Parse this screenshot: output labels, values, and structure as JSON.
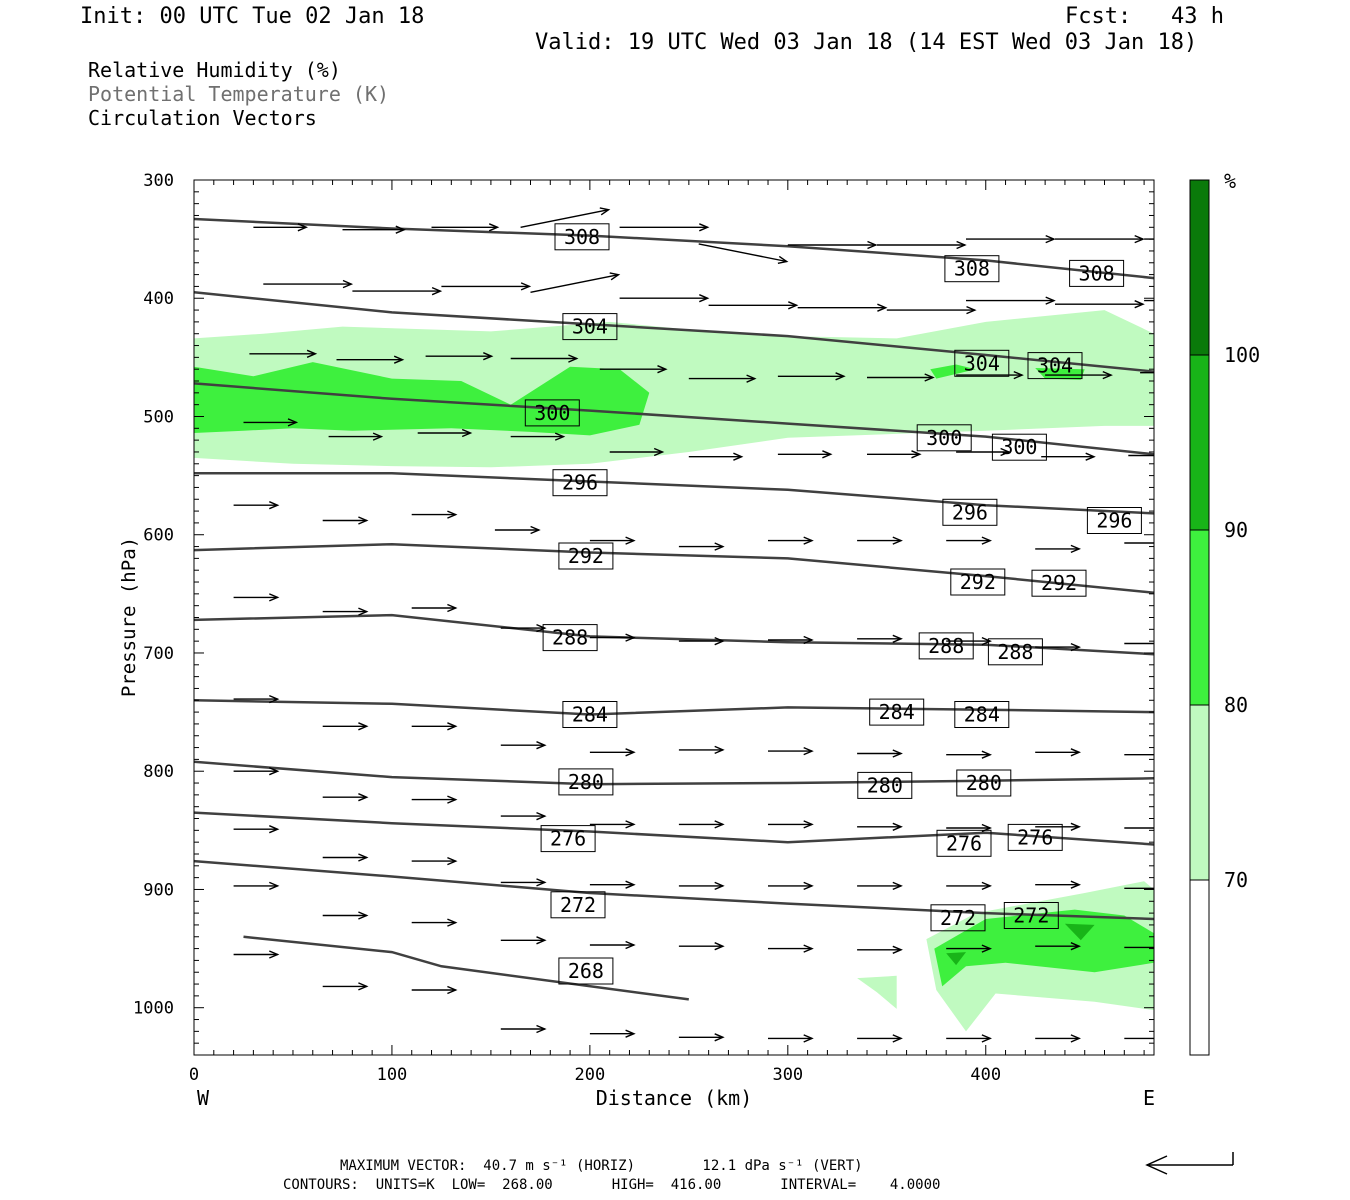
{
  "header": {
    "init": "Init: 00 UTC Tue 02 Jan 18",
    "fcst": "Fcst:   43 h",
    "valid": "Valid: 19 UTC Wed 03 Jan 18 (14 EST Wed 03 Jan 18)"
  },
  "legend_lines": {
    "rh": "Relative Humidity (%)",
    "theta": "Potential Temperature (K)",
    "vectors": "Circulation Vectors"
  },
  "footer": {
    "max_vector": "MAXIMUM VECTOR:  40.7 m s⁻¹ (HORIZ)        12.1 dPa s⁻¹ (VERT)",
    "contours": "CONTOURS:  UNITS=K  LOW=  268.00       HIGH=  416.00       INTERVAL=    4.0000"
  },
  "colors": {
    "rh_70_80": "#c0fac0",
    "rh_80_90": "#3ef03e",
    "rh_90_100": "#18b418",
    "rh_100": "#0a7a0a",
    "contour": "#404040"
  },
  "chart_data": {
    "type": "cross-section",
    "title": "",
    "xlabel": "Distance (km)",
    "ylabel": "Pressure (hPa)",
    "xlim": [
      0,
      485
    ],
    "ylim": [
      1040,
      300
    ],
    "x_ticks": [
      0,
      100,
      200,
      300,
      400
    ],
    "y_ticks": [
      300,
      400,
      500,
      600,
      700,
      800,
      900,
      1000
    ],
    "x_end_labels": {
      "left": "W",
      "right": "E"
    },
    "colorbar": {
      "unit": "%",
      "levels": [
        70,
        80,
        90,
        100
      ]
    },
    "theta_contours": [
      {
        "value": 308,
        "x": [
          0,
          100,
          200,
          300,
          400,
          485
        ],
        "p": [
          333,
          341,
          347,
          356,
          368,
          383
        ]
      },
      {
        "value": 304,
        "x": [
          0,
          100,
          200,
          300,
          400,
          485
        ],
        "p": [
          395,
          412,
          422,
          432,
          448,
          462
        ]
      },
      {
        "value": 300,
        "x": [
          0,
          100,
          200,
          300,
          400,
          485
        ],
        "p": [
          472,
          485,
          495,
          506,
          517,
          532
        ]
      },
      {
        "value": 296,
        "x": [
          0,
          100,
          200,
          300,
          400,
          485
        ],
        "p": [
          548,
          548,
          555,
          562,
          575,
          582
        ]
      },
      {
        "value": 292,
        "x": [
          0,
          100,
          200,
          300,
          400,
          485
        ],
        "p": [
          613,
          608,
          615,
          620,
          635,
          649
        ]
      },
      {
        "value": 288,
        "x": [
          0,
          100,
          200,
          300,
          400,
          485
        ],
        "p": [
          672,
          668,
          686,
          691,
          693,
          701
        ]
      },
      {
        "value": 284,
        "x": [
          0,
          100,
          200,
          300,
          400,
          485
        ],
        "p": [
          740,
          743,
          752,
          746,
          748,
          750
        ]
      },
      {
        "value": 280,
        "x": [
          0,
          100,
          200,
          300,
          400,
          485
        ],
        "p": [
          792,
          805,
          811,
          810,
          808,
          806
        ]
      },
      {
        "value": 276,
        "x": [
          0,
          100,
          200,
          300,
          400,
          485
        ],
        "p": [
          835,
          844,
          851,
          860,
          852,
          862
        ]
      },
      {
        "value": 272,
        "x": [
          0,
          100,
          200,
          300,
          400,
          485
        ],
        "p": [
          876,
          889,
          903,
          912,
          920,
          925
        ]
      },
      {
        "value": 268,
        "x": [
          25,
          100,
          125,
          250
        ],
        "p": [
          940,
          953,
          965,
          993
        ]
      }
    ],
    "contour_labels": [
      {
        "text": "308",
        "x": 196,
        "p": 348
      },
      {
        "text": "308",
        "x": 393,
        "p": 375
      },
      {
        "text": "308",
        "x": 456,
        "p": 379
      },
      {
        "text": "304",
        "x": 200,
        "p": 424
      },
      {
        "text": "304",
        "x": 398,
        "p": 455
      },
      {
        "text": "304",
        "x": 435,
        "p": 457
      },
      {
        "text": "300",
        "x": 181,
        "p": 497
      },
      {
        "text": "300",
        "x": 379,
        "p": 518
      },
      {
        "text": "300",
        "x": 417,
        "p": 526
      },
      {
        "text": "296",
        "x": 195,
        "p": 556
      },
      {
        "text": "296",
        "x": 392,
        "p": 581
      },
      {
        "text": "296",
        "x": 465,
        "p": 588
      },
      {
        "text": "292",
        "x": 198,
        "p": 618
      },
      {
        "text": "292",
        "x": 396,
        "p": 640
      },
      {
        "text": "292",
        "x": 437,
        "p": 641
      },
      {
        "text": "288",
        "x": 190,
        "p": 687
      },
      {
        "text": "288",
        "x": 380,
        "p": 694
      },
      {
        "text": "288",
        "x": 415,
        "p": 699
      },
      {
        "text": "284",
        "x": 200,
        "p": 752
      },
      {
        "text": "284",
        "x": 355,
        "p": 750
      },
      {
        "text": "284",
        "x": 398,
        "p": 752
      },
      {
        "text": "280",
        "x": 198,
        "p": 809
      },
      {
        "text": "280",
        "x": 349,
        "p": 812
      },
      {
        "text": "280",
        "x": 399,
        "p": 810
      },
      {
        "text": "276",
        "x": 189,
        "p": 857
      },
      {
        "text": "276",
        "x": 389,
        "p": 861
      },
      {
        "text": "276",
        "x": 425,
        "p": 856
      },
      {
        "text": "272",
        "x": 194,
        "p": 913
      },
      {
        "text": "272",
        "x": 386,
        "p": 924
      },
      {
        "text": "272",
        "x": 423,
        "p": 922
      },
      {
        "text": "268",
        "x": 198,
        "p": 969
      }
    ],
    "rh_regions": [
      {
        "level": "70-80",
        "x": [
          0,
          35,
          75,
          150,
          210,
          260,
          300,
          355,
          400,
          460,
          485,
          485,
          460,
          400,
          300,
          250,
          200,
          150,
          100,
          50,
          0
        ],
        "p": [
          434,
          430,
          424,
          428,
          420,
          428,
          432,
          434,
          420,
          410,
          430,
          508,
          508,
          512,
          518,
          530,
          540,
          543,
          542,
          540,
          535
        ]
      },
      {
        "level": "80-90",
        "x": [
          0,
          30,
          60,
          100,
          135,
          160,
          190,
          215,
          230,
          225,
          200,
          170,
          130,
          80,
          50,
          25,
          0
        ],
        "p": [
          458,
          466,
          454,
          468,
          470,
          490,
          458,
          460,
          480,
          507,
          516,
          513,
          510,
          512,
          510,
          512,
          514
        ]
      },
      {
        "level": "80-90",
        "x": [
          372,
          385,
          395,
          375
        ],
        "p": [
          460,
          456,
          460,
          468
        ]
      },
      {
        "level": "80-90",
        "x": [
          425,
          450,
          448,
          430
        ],
        "p": [
          459,
          460,
          469,
          468
        ]
      },
      {
        "level": "70-80",
        "x": [
          370,
          395,
          450,
          480,
          485,
          485,
          455,
          405,
          390,
          375
        ],
        "p": [
          942,
          920,
          903,
          893,
          900,
          1002,
          995,
          988,
          1020,
          985
        ]
      },
      {
        "level": "70-80",
        "x": [
          335,
          355,
          355,
          345
        ],
        "p": [
          975,
          973,
          1001,
          987
        ]
      },
      {
        "level": "80-90",
        "x": [
          374,
          400,
          445,
          470,
          485,
          485,
          455,
          410,
          390,
          378
        ],
        "p": [
          950,
          925,
          917,
          922,
          937,
          962,
          970,
          962,
          965,
          982
        ]
      },
      {
        "level": "90-100",
        "x": [
          380,
          390,
          385
        ],
        "p": [
          954,
          953,
          964
        ]
      },
      {
        "level": "90-100",
        "x": [
          440,
          455,
          448
        ],
        "p": [
          929,
          930,
          943
        ]
      }
    ],
    "vectors": [
      {
        "x": 30,
        "p": 340,
        "u": 12,
        "w": 0
      },
      {
        "x": 75,
        "p": 342,
        "u": 14,
        "w": 0
      },
      {
        "x": 120,
        "p": 340,
        "u": 15,
        "w": 0
      },
      {
        "x": 165,
        "p": 340,
        "u": 20,
        "w": 1
      },
      {
        "x": 215,
        "p": 340,
        "u": 20,
        "w": 0
      },
      {
        "x": 255,
        "p": 354,
        "u": 20,
        "w": -1
      },
      {
        "x": 300,
        "p": 355,
        "u": 20,
        "w": 0
      },
      {
        "x": 345,
        "p": 355,
        "u": 20,
        "w": 0
      },
      {
        "x": 390,
        "p": 350,
        "u": 20,
        "w": 0
      },
      {
        "x": 435,
        "p": 350,
        "u": 20,
        "w": 0
      },
      {
        "x": 480,
        "p": 350,
        "u": 20,
        "w": 0
      },
      {
        "x": 35,
        "p": 388,
        "u": 20,
        "w": 0
      },
      {
        "x": 80,
        "p": 394,
        "u": 20,
        "w": 0
      },
      {
        "x": 125,
        "p": 390,
        "u": 20,
        "w": 0
      },
      {
        "x": 170,
        "p": 395,
        "u": 20,
        "w": 1
      },
      {
        "x": 215,
        "p": 400,
        "u": 20,
        "w": 0
      },
      {
        "x": 260,
        "p": 406,
        "u": 20,
        "w": 0
      },
      {
        "x": 305,
        "p": 408,
        "u": 20,
        "w": 0
      },
      {
        "x": 350,
        "p": 410,
        "u": 20,
        "w": 0
      },
      {
        "x": 390,
        "p": 402,
        "u": 20,
        "w": 0
      },
      {
        "x": 435,
        "p": 405,
        "u": 20,
        "w": 0
      },
      {
        "x": 480,
        "p": 402,
        "u": 20,
        "w": 0
      },
      {
        "x": 28,
        "p": 447,
        "u": 15,
        "w": 0
      },
      {
        "x": 72,
        "p": 452,
        "u": 15,
        "w": 0
      },
      {
        "x": 117,
        "p": 449,
        "u": 15,
        "w": 0
      },
      {
        "x": 160,
        "p": 451,
        "u": 15,
        "w": 0
      },
      {
        "x": 205,
        "p": 460,
        "u": 15,
        "w": 0
      },
      {
        "x": 250,
        "p": 468,
        "u": 15,
        "w": 0
      },
      {
        "x": 295,
        "p": 466,
        "u": 15,
        "w": 0
      },
      {
        "x": 340,
        "p": 467,
        "u": 15,
        "w": 0
      },
      {
        "x": 385,
        "p": 465,
        "u": 15,
        "w": 0
      },
      {
        "x": 430,
        "p": 465,
        "u": 15,
        "w": 0
      },
      {
        "x": 478,
        "p": 463,
        "u": 15,
        "w": 0
      },
      {
        "x": 25,
        "p": 505,
        "u": 12,
        "w": 0
      },
      {
        "x": 68,
        "p": 517,
        "u": 12,
        "w": 0
      },
      {
        "x": 113,
        "p": 514,
        "u": 12,
        "w": 0
      },
      {
        "x": 160,
        "p": 517,
        "u": 12,
        "w": 0
      },
      {
        "x": 210,
        "p": 530,
        "u": 12,
        "w": 0
      },
      {
        "x": 250,
        "p": 534,
        "u": 12,
        "w": 0
      },
      {
        "x": 295,
        "p": 532,
        "u": 12,
        "w": 0
      },
      {
        "x": 340,
        "p": 532,
        "u": 12,
        "w": 0
      },
      {
        "x": 385,
        "p": 530,
        "u": 12,
        "w": 0
      },
      {
        "x": 428,
        "p": 534,
        "u": 12,
        "w": 0
      },
      {
        "x": 472,
        "p": 533,
        "u": 12,
        "w": 0
      },
      {
        "x": 20,
        "p": 575,
        "u": 10,
        "w": 0
      },
      {
        "x": 65,
        "p": 588,
        "u": 10,
        "w": 0
      },
      {
        "x": 110,
        "p": 583,
        "u": 10,
        "w": 0
      },
      {
        "x": 152,
        "p": 596,
        "u": 10,
        "w": 0
      },
      {
        "x": 200,
        "p": 605,
        "u": 10,
        "w": 0
      },
      {
        "x": 245,
        "p": 610,
        "u": 10,
        "w": 0
      },
      {
        "x": 290,
        "p": 605,
        "u": 10,
        "w": 0
      },
      {
        "x": 335,
        "p": 605,
        "u": 10,
        "w": 0
      },
      {
        "x": 380,
        "p": 605,
        "u": 10,
        "w": 0
      },
      {
        "x": 425,
        "p": 612,
        "u": 10,
        "w": 0
      },
      {
        "x": 470,
        "p": 607,
        "u": 10,
        "w": 0
      },
      {
        "x": 20,
        "p": 653,
        "u": 10,
        "w": 0
      },
      {
        "x": 65,
        "p": 665,
        "u": 10,
        "w": 0
      },
      {
        "x": 110,
        "p": 662,
        "u": 10,
        "w": 0
      },
      {
        "x": 155,
        "p": 679,
        "u": 10,
        "w": 0
      },
      {
        "x": 200,
        "p": 687,
        "u": 10,
        "w": 0
      },
      {
        "x": 245,
        "p": 690,
        "u": 10,
        "w": 0
      },
      {
        "x": 290,
        "p": 689,
        "u": 10,
        "w": 0
      },
      {
        "x": 335,
        "p": 688,
        "u": 10,
        "w": 0
      },
      {
        "x": 380,
        "p": 690,
        "u": 10,
        "w": 0
      },
      {
        "x": 425,
        "p": 695,
        "u": 10,
        "w": 0
      },
      {
        "x": 470,
        "p": 692,
        "u": 10,
        "w": 0
      },
      {
        "x": 20,
        "p": 739,
        "u": 10,
        "w": 0
      },
      {
        "x": 65,
        "p": 762,
        "u": 10,
        "w": 0
      },
      {
        "x": 110,
        "p": 762,
        "u": 10,
        "w": 0
      },
      {
        "x": 155,
        "p": 778,
        "u": 10,
        "w": 0
      },
      {
        "x": 200,
        "p": 784,
        "u": 10,
        "w": 0
      },
      {
        "x": 245,
        "p": 782,
        "u": 10,
        "w": 0
      },
      {
        "x": 290,
        "p": 783,
        "u": 10,
        "w": 0
      },
      {
        "x": 335,
        "p": 785,
        "u": 10,
        "w": 0
      },
      {
        "x": 380,
        "p": 786,
        "u": 10,
        "w": 0
      },
      {
        "x": 425,
        "p": 784,
        "u": 10,
        "w": 0
      },
      {
        "x": 470,
        "p": 786,
        "u": 10,
        "w": 0
      },
      {
        "x": 20,
        "p": 800,
        "u": 10,
        "w": 0
      },
      {
        "x": 65,
        "p": 822,
        "u": 10,
        "w": 0
      },
      {
        "x": 110,
        "p": 824,
        "u": 10,
        "w": 0
      },
      {
        "x": 155,
        "p": 838,
        "u": 10,
        "w": 0
      },
      {
        "x": 200,
        "p": 845,
        "u": 10,
        "w": 0
      },
      {
        "x": 245,
        "p": 845,
        "u": 10,
        "w": 0
      },
      {
        "x": 290,
        "p": 845,
        "u": 10,
        "w": 0
      },
      {
        "x": 335,
        "p": 847,
        "u": 10,
        "w": 0
      },
      {
        "x": 380,
        "p": 848,
        "u": 10,
        "w": 0
      },
      {
        "x": 425,
        "p": 847,
        "u": 10,
        "w": 0
      },
      {
        "x": 470,
        "p": 848,
        "u": 10,
        "w": 0
      },
      {
        "x": 20,
        "p": 849,
        "u": 10,
        "w": 0
      },
      {
        "x": 65,
        "p": 873,
        "u": 10,
        "w": 0
      },
      {
        "x": 110,
        "p": 876,
        "u": 10,
        "w": 0
      },
      {
        "x": 155,
        "p": 894,
        "u": 10,
        "w": 0
      },
      {
        "x": 200,
        "p": 896,
        "u": 10,
        "w": 0
      },
      {
        "x": 245,
        "p": 897,
        "u": 10,
        "w": 0
      },
      {
        "x": 290,
        "p": 897,
        "u": 10,
        "w": 0
      },
      {
        "x": 335,
        "p": 897,
        "u": 10,
        "w": 0
      },
      {
        "x": 380,
        "p": 897,
        "u": 10,
        "w": 0
      },
      {
        "x": 425,
        "p": 896,
        "u": 10,
        "w": 0
      },
      {
        "x": 470,
        "p": 899,
        "u": 10,
        "w": 0
      },
      {
        "x": 20,
        "p": 897,
        "u": 10,
        "w": 0
      },
      {
        "x": 65,
        "p": 922,
        "u": 10,
        "w": 0
      },
      {
        "x": 110,
        "p": 928,
        "u": 10,
        "w": 0
      },
      {
        "x": 155,
        "p": 943,
        "u": 10,
        "w": 0
      },
      {
        "x": 200,
        "p": 947,
        "u": 10,
        "w": 0
      },
      {
        "x": 245,
        "p": 948,
        "u": 10,
        "w": 0
      },
      {
        "x": 290,
        "p": 950,
        "u": 10,
        "w": 0
      },
      {
        "x": 335,
        "p": 951,
        "u": 10,
        "w": 0
      },
      {
        "x": 380,
        "p": 950,
        "u": 10,
        "w": 0
      },
      {
        "x": 425,
        "p": 948,
        "u": 10,
        "w": 0
      },
      {
        "x": 470,
        "p": 949,
        "u": 10,
        "w": 0
      },
      {
        "x": 20,
        "p": 955,
        "u": 10,
        "w": 0
      },
      {
        "x": 65,
        "p": 982,
        "u": 10,
        "w": 0
      },
      {
        "x": 110,
        "p": 985,
        "u": 10,
        "w": 0
      },
      {
        "x": 155,
        "p": 1018,
        "u": 10,
        "w": 0
      },
      {
        "x": 200,
        "p": 1022,
        "u": 10,
        "w": 0
      },
      {
        "x": 245,
        "p": 1025,
        "u": 10,
        "w": 0
      },
      {
        "x": 290,
        "p": 1026,
        "u": 10,
        "w": 0
      },
      {
        "x": 335,
        "p": 1026,
        "u": 10,
        "w": 0
      },
      {
        "x": 380,
        "p": 1026,
        "u": 10,
        "w": 0
      },
      {
        "x": 425,
        "p": 1026,
        "u": 10,
        "w": 0
      },
      {
        "x": 470,
        "p": 1026,
        "u": 10,
        "w": 0
      }
    ]
  }
}
